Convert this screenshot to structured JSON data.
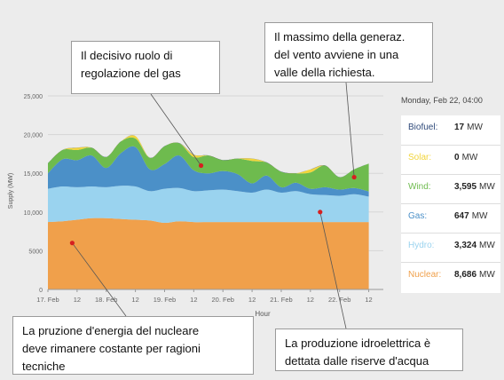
{
  "chart_data": {
    "type": "area",
    "ylabel": "Supply (MW)",
    "xlabel": "Hour",
    "ylim": [
      0,
      25000
    ],
    "yticks": [
      "25,000",
      "20,000",
      "15,000",
      "10,000",
      "5000",
      "0"
    ],
    "yticks_values": [
      25000,
      20000,
      15000,
      10000,
      5000,
      0
    ],
    "xtick_labels": [
      "17. Feb",
      "12",
      "18. Feb",
      "12",
      "19. Feb",
      "12",
      "20. Feb",
      "12",
      "21. Feb",
      "12",
      "22. Feb",
      "12"
    ],
    "xtick_hours": [
      0,
      12,
      24,
      36,
      48,
      60,
      72,
      84,
      96,
      108,
      120,
      132
    ],
    "x_hours": [
      0,
      6,
      12,
      18,
      24,
      30,
      36,
      42,
      48,
      54,
      60,
      66,
      72,
      78,
      84,
      90,
      96,
      102,
      108,
      114,
      120,
      126,
      132
    ],
    "series": [
      {
        "name": "Nuclear",
        "color": "#f0a04b",
        "values": [
          8700,
          8800,
          9000,
          9200,
          9200,
          9100,
          9000,
          8900,
          8600,
          8800,
          8700,
          8700,
          8700,
          8700,
          8700,
          8700,
          8700,
          8700,
          8700,
          8700,
          8700,
          8700,
          8700
        ]
      },
      {
        "name": "Hydro",
        "color": "#9ad3ef",
        "values": [
          4300,
          4500,
          4200,
          4100,
          4000,
          4300,
          4300,
          3800,
          4400,
          4300,
          4000,
          4100,
          4200,
          4000,
          3800,
          4200,
          3800,
          4000,
          3600,
          3500,
          3400,
          3600,
          3300
        ]
      },
      {
        "name": "Gas",
        "color": "#4b90c8",
        "values": [
          2000,
          3500,
          3500,
          4000,
          2500,
          4200,
          5100,
          2800,
          3200,
          4200,
          2700,
          2200,
          2400,
          2200,
          1200,
          1800,
          700,
          1100,
          700,
          1000,
          800,
          800,
          650
        ]
      },
      {
        "name": "Wind",
        "color": "#6ebb4e",
        "values": [
          1300,
          1200,
          1300,
          1000,
          1400,
          1500,
          1100,
          1500,
          2300,
          1600,
          1700,
          2300,
          1400,
          2000,
          2900,
          1700,
          2000,
          1200,
          2100,
          2800,
          1600,
          2400,
          3600
        ]
      },
      {
        "name": "Solar",
        "color": "#f2d53c",
        "values": [
          0,
          0,
          300,
          0,
          0,
          0,
          300,
          0,
          0,
          0,
          300,
          0,
          0,
          0,
          300,
          0,
          0,
          0,
          400,
          0,
          0,
          0,
          0
        ]
      },
      {
        "name": "Biofuel",
        "color": "#2f4a7a",
        "values": [
          17,
          17,
          17,
          17,
          17,
          17,
          17,
          17,
          17,
          17,
          17,
          17,
          17,
          17,
          17,
          17,
          17,
          17,
          17,
          17,
          17,
          17,
          17
        ]
      }
    ],
    "markers": [
      {
        "hour": 10,
        "value": 6000
      },
      {
        "hour": 63,
        "value": 16000
      },
      {
        "hour": 112,
        "value": 10000
      },
      {
        "hour": 126,
        "value": 14500
      }
    ]
  },
  "legend": {
    "date": "Monday, Feb 22, 04:00",
    "unit": "MW",
    "rows": [
      {
        "name": "Biofuel:",
        "value": "17",
        "color": "#2f4a7a"
      },
      {
        "name": "Solar:",
        "value": "0",
        "color": "#f2d53c"
      },
      {
        "name": "Wind:",
        "value": "3,595",
        "color": "#6ebb4e"
      },
      {
        "name": "Gas:",
        "value": "647",
        "color": "#4b90c8"
      },
      {
        "name": "Hydro:",
        "value": "3,324",
        "color": "#9ad3ef"
      },
      {
        "name": "Nuclear:",
        "value": "8,686",
        "color": "#f0a04b"
      }
    ]
  },
  "annotations": {
    "gas": "Il decisivo ruolo di\nregolazione del gas",
    "wind": "Il massimo della generaz.\ndel vento avviene in una\nvalle della richiesta.",
    "nuclear": "La pruzione d'energia  del nucleare\ndeve rimanere costante per ragioni\ntecniche",
    "hydro": "La produzione idroelettrica è\ndettata dalle riserve d'acqua"
  },
  "colors": {
    "marker": "#d62020",
    "annotation_line": "#555555",
    "axis_text": "#555555"
  }
}
